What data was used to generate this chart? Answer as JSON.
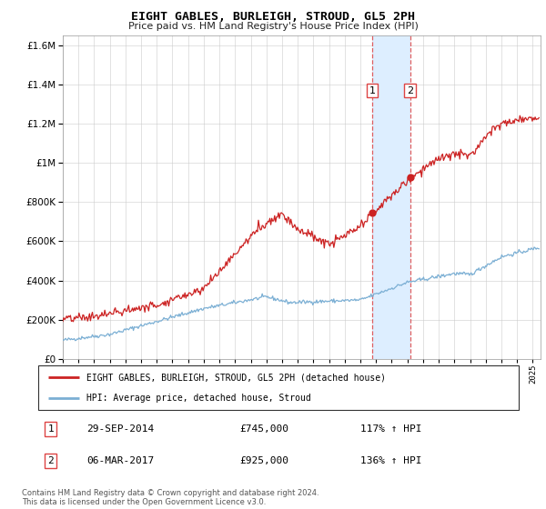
{
  "title": "EIGHT GABLES, BURLEIGH, STROUD, GL5 2PH",
  "subtitle": "Price paid vs. HM Land Registry's House Price Index (HPI)",
  "legend_line1": "EIGHT GABLES, BURLEIGH, STROUD, GL5 2PH (detached house)",
  "legend_line2": "HPI: Average price, detached house, Stroud",
  "transaction1_date": "29-SEP-2014",
  "transaction1_price": "£745,000",
  "transaction1_hpi": "117% ↑ HPI",
  "transaction1_year": 2014.75,
  "transaction1_value": 745000,
  "transaction2_date": "06-MAR-2017",
  "transaction2_price": "£925,000",
  "transaction2_hpi": "136% ↑ HPI",
  "transaction2_year": 2017.17,
  "transaction2_value": 925000,
  "hpi_color": "#7bafd4",
  "price_color": "#cc2222",
  "highlight_color": "#ddeeff",
  "dashed_color": "#dd4444",
  "ylim_min": 0,
  "ylim_max": 1650000,
  "xlim_min": 1995.0,
  "xlim_max": 2025.5,
  "footer": "Contains HM Land Registry data © Crown copyright and database right 2024.\nThis data is licensed under the Open Government Licence v3.0."
}
